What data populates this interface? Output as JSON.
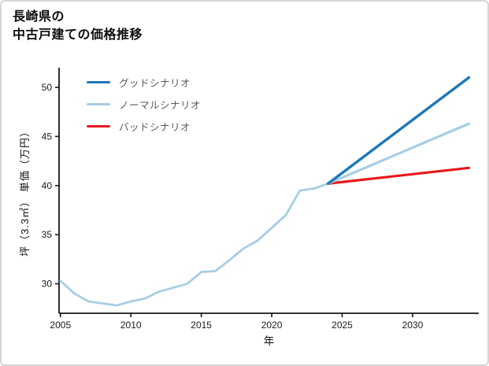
{
  "header": {
    "title_line1": "長崎県の",
    "title_line2": "中古戸建ての価格推移"
  },
  "colors": {
    "axis": "#16161d",
    "tick_label": "#1a1a1a",
    "legend_text": "#595959",
    "border": "#d6d6d6",
    "good_scenario": "#1f77b4",
    "normal_scenario": "#a6cee3",
    "bad_scenario": "#e8191c"
  },
  "chart_data": {
    "type": "line",
    "title": "長崎県の\n中古戸建ての価格推移",
    "xlabel": "年",
    "ylabel": "坪（3.3㎡） 単価（万円）",
    "xlim": [
      2004.9,
      2034.7
    ],
    "ylim": [
      27,
      52
    ],
    "xticks": [
      2005,
      2010,
      2015,
      2020,
      2025,
      2030
    ],
    "yticks": [
      30,
      35,
      40,
      45,
      50
    ],
    "grid": false,
    "legend_position": "upper-left",
    "series": [
      {
        "name": "グッドシナリオ",
        "color": "#1f77b4",
        "width": 3.4,
        "x": [
          2024,
          2034
        ],
        "y": [
          40.2,
          51.0
        ]
      },
      {
        "name": "ノーマルシナリオ",
        "color": "#a6cee3",
        "width": 3.2,
        "x": [
          2024,
          2034
        ],
        "y": [
          40.2,
          46.3
        ]
      },
      {
        "name": "バッドシナリオ",
        "color": "#e8191c",
        "width": 3.2,
        "x": [
          2024,
          2034
        ],
        "y": [
          40.2,
          41.8
        ]
      },
      {
        "name": "",
        "id": "historical-price",
        "color": "#a6cee3",
        "width": 2.8,
        "x": [
          2005,
          2006,
          2007,
          2008,
          2009,
          2010,
          2011,
          2012,
          2013,
          2014,
          2015,
          2016,
          2017,
          2018,
          2019,
          2020,
          2021,
          2022,
          2023,
          2024
        ],
        "y": [
          30.3,
          29.0,
          28.2,
          28.0,
          27.8,
          28.2,
          28.5,
          29.2,
          29.6,
          30.0,
          31.2,
          31.3,
          32.4,
          33.6,
          34.4,
          35.7,
          37.0,
          39.5,
          39.7,
          40.2
        ]
      }
    ]
  }
}
